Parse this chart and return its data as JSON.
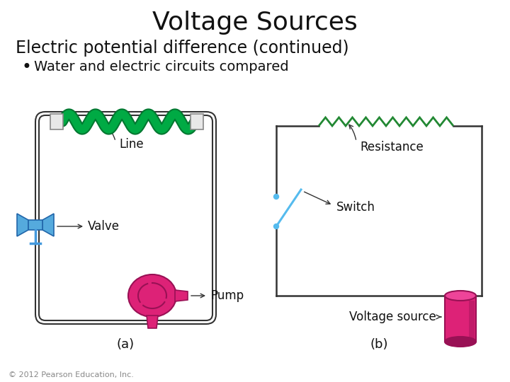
{
  "title": "Voltage Sources",
  "subtitle": "Electric potential difference (continued)",
  "bullet": "Water and electric circuits compared",
  "copyright": "© 2012 Pearson Education, Inc.",
  "background_color": "#ffffff",
  "title_fontsize": 26,
  "subtitle_fontsize": 17,
  "bullet_fontsize": 14,
  "copyright_fontsize": 8,
  "label_a": "(a)",
  "label_b": "(b)",
  "pipe_color": "#333333",
  "wire_color": "#333333",
  "green_hose_color": "#00aa44",
  "green_hose_dark": "#007730",
  "blue_color": "#55aadd",
  "blue_dark": "#2266aa",
  "pink_color": "#dd2277",
  "pink_dark": "#991155",
  "resistor_color": "#228833",
  "switch_color": "#55bbee",
  "battery_color": "#dd2277",
  "battery_dark": "#991155",
  "label_fontsize": 13,
  "annotation_fontsize": 12
}
